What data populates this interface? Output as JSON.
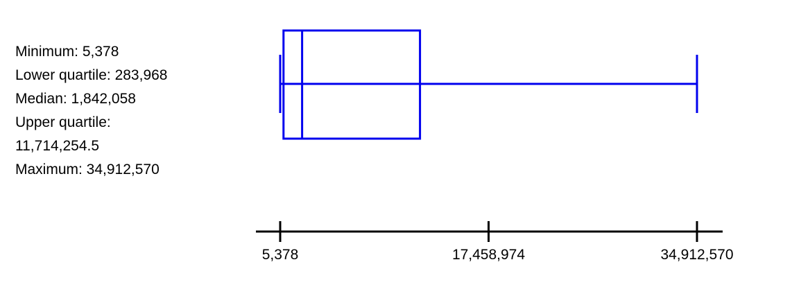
{
  "stats": {
    "minimum": "Minimum: 5,378",
    "lower_quartile": "Lower quartile: 283,968",
    "median": "Median: 1,842,058",
    "upper_quartile_label": "Upper quartile:",
    "upper_quartile_value": "11,714,254.5",
    "maximum": "Maximum: 34,912,570"
  },
  "colors": {
    "box": "#0000ee",
    "axis": "#000000"
  },
  "chart_data": {
    "type": "box",
    "orientation": "horizontal",
    "minimum": 5378,
    "lower_quartile": 283968,
    "median": 1842058,
    "upper_quartile": 11714254.5,
    "maximum": 34912570,
    "xlim": [
      5378,
      34912570
    ],
    "ticks": [
      {
        "value": 5378,
        "label": "5,378"
      },
      {
        "value": 17458974,
        "label": "17,458,974"
      },
      {
        "value": 34912570,
        "label": "34,912,570"
      }
    ],
    "title": "",
    "xlabel": "",
    "ylabel": ""
  }
}
